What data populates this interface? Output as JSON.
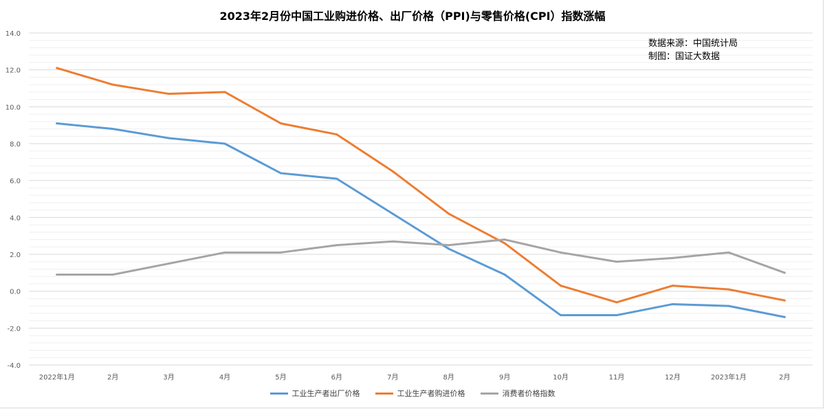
{
  "chart_data": {
    "type": "line",
    "title": "2023年2月份中国工业购进价格、出厂价格（PPI)与零售价格(CPI）指数涨幅",
    "annotations": [
      "数据来源：中国统计局",
      "制图：国证大数据"
    ],
    "categories": [
      "2022年1月",
      "2月",
      "3月",
      "4月",
      "5月",
      "6月",
      "7月",
      "8月",
      "9月",
      "10月",
      "11月",
      "12月",
      "2023年1月",
      "2月"
    ],
    "ylim": [
      -4,
      14
    ],
    "yticks": [
      "14.0",
      "12.0",
      "10.0",
      "8.0",
      "6.0",
      "4.0",
      "2.0",
      "0.0",
      "-2.0",
      "-4.0"
    ],
    "grid": true,
    "legend": "bottom",
    "series": [
      {
        "name": "工业生产者出厂价格",
        "color": "#5b9bd5",
        "values": [
          9.1,
          8.8,
          8.3,
          8.0,
          6.4,
          6.1,
          4.2,
          2.3,
          0.9,
          -1.3,
          -1.3,
          -0.7,
          -0.8,
          -1.4
        ]
      },
      {
        "name": "工业生产者购进价格",
        "color": "#ed7d31",
        "values": [
          12.1,
          11.2,
          10.7,
          10.8,
          9.1,
          8.5,
          6.5,
          4.2,
          2.6,
          0.3,
          -0.6,
          0.3,
          0.1,
          -0.5
        ]
      },
      {
        "name": "消费者价格指数",
        "color": "#a5a5a5",
        "values": [
          0.9,
          0.9,
          1.5,
          2.1,
          2.1,
          2.5,
          2.7,
          2.5,
          2.8,
          2.1,
          1.6,
          1.8,
          2.1,
          1.0
        ]
      }
    ]
  }
}
